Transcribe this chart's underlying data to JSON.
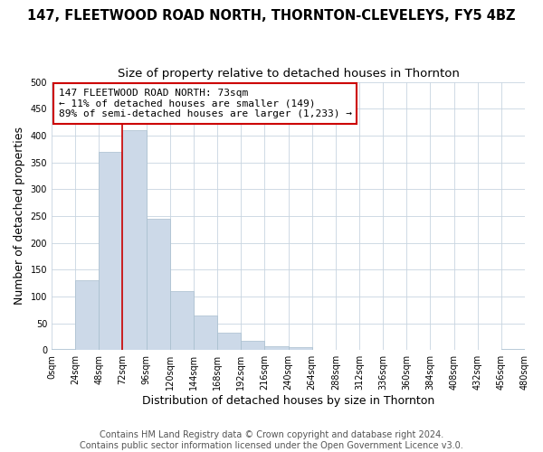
{
  "title": "147, FLEETWOOD ROAD NORTH, THORNTON-CLEVELEYS, FY5 4BZ",
  "subtitle": "Size of property relative to detached houses in Thornton",
  "xlabel": "Distribution of detached houses by size in Thornton",
  "ylabel": "Number of detached properties",
  "bin_edges": [
    0,
    24,
    48,
    72,
    96,
    120,
    144,
    168,
    192,
    216,
    240,
    264,
    288,
    312,
    336,
    360,
    384,
    408,
    432,
    456,
    480
  ],
  "bar_values": [
    2,
    130,
    370,
    410,
    245,
    110,
    65,
    33,
    17,
    7,
    5,
    0,
    0,
    0,
    0,
    0,
    0,
    0,
    0,
    2
  ],
  "bar_color": "#ccd9e8",
  "bar_edgecolor": "#a8bece",
  "vline_x": 72,
  "vline_color": "#cc0000",
  "annotation_box_text": "147 FLEETWOOD ROAD NORTH: 73sqm\n← 11% of detached houses are smaller (149)\n89% of semi-detached houses are larger (1,233) →",
  "annotation_box_color": "#cc0000",
  "ylim": [
    0,
    500
  ],
  "yticks": [
    0,
    50,
    100,
    150,
    200,
    250,
    300,
    350,
    400,
    450,
    500
  ],
  "xtick_labels": [
    "0sqm",
    "24sqm",
    "48sqm",
    "72sqm",
    "96sqm",
    "120sqm",
    "144sqm",
    "168sqm",
    "192sqm",
    "216sqm",
    "240sqm",
    "264sqm",
    "288sqm",
    "312sqm",
    "336sqm",
    "360sqm",
    "384sqm",
    "408sqm",
    "432sqm",
    "456sqm",
    "480sqm"
  ],
  "footer_text": "Contains HM Land Registry data © Crown copyright and database right 2024.\nContains public sector information licensed under the Open Government Licence v3.0.",
  "bg_color": "#ffffff",
  "plot_bg_color": "#ffffff",
  "title_fontsize": 10.5,
  "subtitle_fontsize": 9.5,
  "axis_label_fontsize": 9,
  "tick_fontsize": 7,
  "footer_fontsize": 7
}
